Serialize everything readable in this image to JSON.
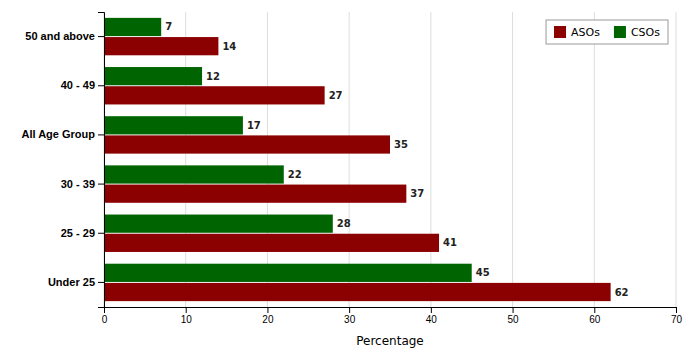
{
  "chart_data": {
    "type": "bar",
    "orientation": "horizontal",
    "xlabel": "Percentage",
    "categories": [
      "Under 25",
      "25 - 29",
      "30 - 39",
      "All Age Group",
      "40 - 49",
      "50 and above"
    ],
    "series": [
      {
        "name": "ASOs",
        "color": "#8B0000",
        "values": [
          62,
          41,
          37,
          35,
          27,
          14
        ]
      },
      {
        "name": "CSOs",
        "color": "#006400",
        "values": [
          45,
          28,
          22,
          17,
          12,
          7
        ]
      }
    ],
    "xlim": [
      0,
      70
    ],
    "xticks": [
      0,
      10,
      20,
      30,
      40,
      50,
      60,
      70
    ],
    "grid": true,
    "legend": "upper right",
    "data_labels": true
  }
}
